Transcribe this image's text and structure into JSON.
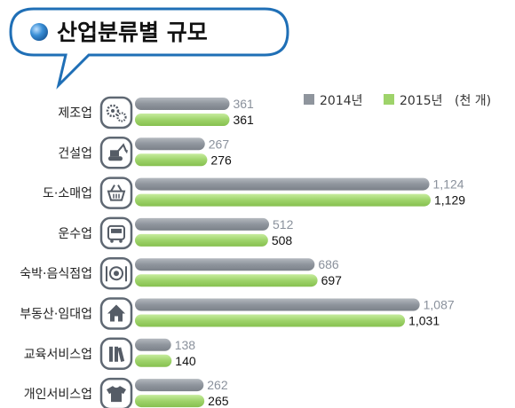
{
  "title": "산업분류별 규모",
  "legend": {
    "items": [
      "2014년",
      "2015년"
    ],
    "unit": "(천 개)"
  },
  "colors": {
    "series_2014": "#8f959d",
    "series_2015": "#9ed36a",
    "icon_border": "#5f6873",
    "title_border": "#1f6fb6",
    "bullet": "#2f80c9"
  },
  "icons": [
    "gears-icon",
    "excavator-icon",
    "basket-icon",
    "bus-icon",
    "plate-cutlery-icon",
    "house-icon",
    "books-icon",
    "shirt-icon"
  ],
  "chart_data": {
    "type": "bar",
    "orientation": "horizontal",
    "title": "산업분류별 규모",
    "unit": "(천 개)",
    "legend_position": "top-right",
    "grid": false,
    "categories": [
      "제조업",
      "건설업",
      "도·소매업",
      "운수업",
      "숙박·음식점업",
      "부동산·임대업",
      "교육서비스업",
      "개인서비스업"
    ],
    "series": [
      {
        "name": "2014년",
        "values": [
          361,
          267,
          1124,
          512,
          686,
          1087,
          138,
          262
        ],
        "labels": [
          "361",
          "267",
          "1,124",
          "512",
          "686",
          "1,087",
          "138",
          "262"
        ]
      },
      {
        "name": "2015년",
        "values": [
          361,
          276,
          1129,
          508,
          697,
          1031,
          140,
          265
        ],
        "labels": [
          "361",
          "276",
          "1,129",
          "508",
          "697",
          "1,031",
          "140",
          "265"
        ]
      }
    ],
    "xlim": [
      0,
      1129
    ]
  }
}
